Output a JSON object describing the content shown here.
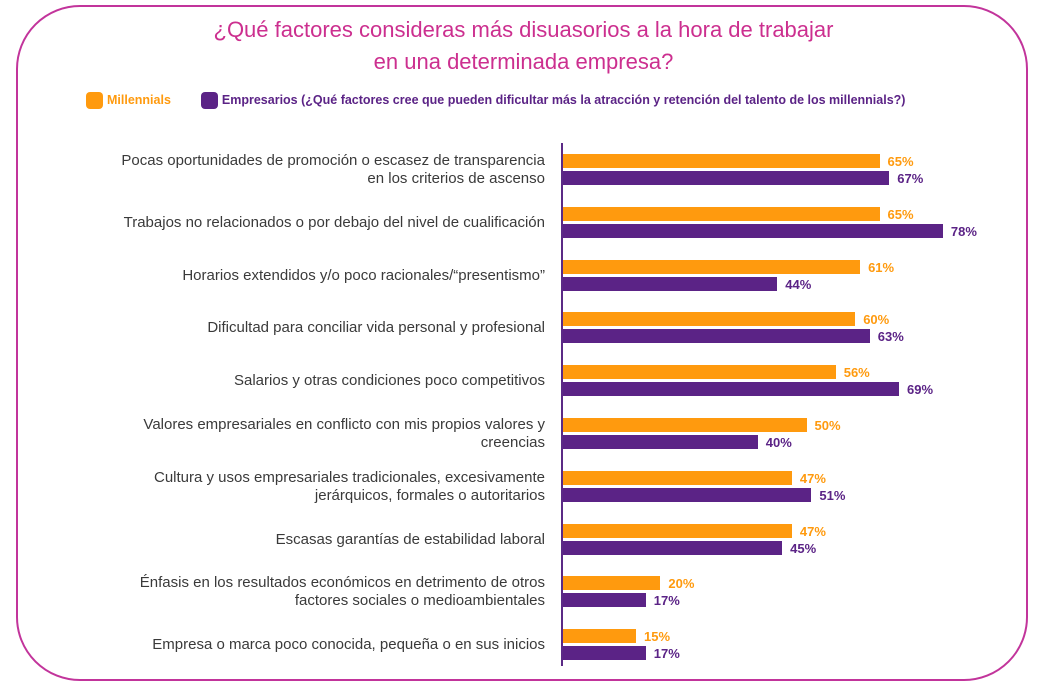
{
  "chart_data": {
    "type": "bar",
    "orientation": "horizontal",
    "title": "¿Qué factores consideras más disuasorios a la hora de trabajar\nen una determinada empresa?",
    "title_lines": [
      "¿Qué factores consideras más disuasorios a la hora de trabajar",
      "en una determinada empresa?"
    ],
    "xlabel": "",
    "ylabel": "",
    "xlim": [
      0,
      100
    ],
    "grid": false,
    "legend_position": "top-left",
    "value_suffix": "%",
    "categories": [
      "Pocas oportunidades de promoción o escasez de transparencia\nen los criterios de ascenso",
      "Trabajos no relacionados o por debajo del nivel de cualificación",
      "Horarios extendidos y/o poco racionales/“presentismo”",
      "Dificultad para conciliar vida personal y profesional",
      "Salarios y otras condiciones poco competitivos",
      "Valores empresariales en conflicto con mis propios valores y\ncreencias",
      "Cultura y usos empresariales tradicionales, excesivamente\njerárquicos, formales o autoritarios",
      "Escasas garantías de estabilidad laboral",
      "Énfasis en los resultados económicos en detrimento de otros\nfactores sociales o medioambientales",
      "Empresa o marca poco conocida, pequeña o en sus inicios"
    ],
    "series": [
      {
        "name": "Millennials",
        "color": "#ff9a0e",
        "values": [
          65,
          65,
          61,
          60,
          56,
          50,
          47,
          47,
          20,
          15
        ]
      },
      {
        "name": "Empresarios (¿Qué factores cree que pueden dificultar más la atracción y retención del talento de los millennials?)",
        "color": "#5b2386",
        "values": [
          67,
          78,
          44,
          63,
          69,
          40,
          51,
          45,
          17,
          17
        ]
      }
    ]
  },
  "colors": {
    "frame": "#c2349b",
    "title": "#cc2f8f",
    "label_text": "#3a3a3a",
    "axis": "#5b2a86"
  }
}
